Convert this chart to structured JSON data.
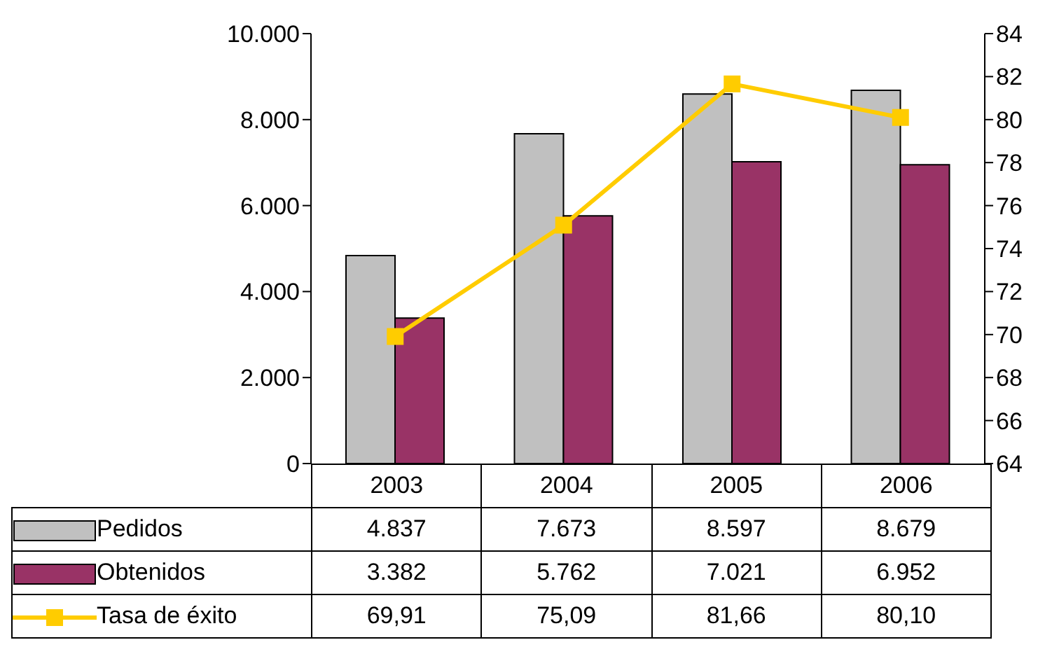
{
  "chart_data": {
    "type": "bar",
    "categories": [
      "2003",
      "2004",
      "2005",
      "2006"
    ],
    "series": [
      {
        "name": "Pedidos",
        "color": "#c0c0c0",
        "values": [
          4837,
          7673,
          8597,
          8679
        ],
        "value_labels": [
          "4.837",
          "7.673",
          "8.597",
          "8.679"
        ]
      },
      {
        "name": "Obtenidos",
        "color": "#993366",
        "values": [
          3382,
          5762,
          7021,
          6952
        ],
        "value_labels": [
          "3.382",
          "5.762",
          "7.021",
          "6.952"
        ]
      },
      {
        "name": "Tasa de éxito",
        "type": "line",
        "axis": "y2",
        "color": "#ffcc00",
        "marker": "square",
        "values": [
          69.91,
          75.09,
          81.66,
          80.1
        ],
        "value_labels": [
          "69,91",
          "75,09",
          "81,66",
          "80,10"
        ]
      }
    ],
    "ylim": [
      0,
      10000
    ],
    "yticks": [
      0,
      {
        "value": 2000,
        "label": "2.000"
      },
      {
        "value": 4000,
        "label": "4.000"
      },
      {
        "value": 6000,
        "label": "6.000"
      },
      {
        "value": 8000,
        "label": "8.000"
      },
      {
        "value": 10000,
        "label": "10.000"
      }
    ],
    "y2lim": [
      64,
      84
    ],
    "y2ticks": [
      64,
      66,
      68,
      70,
      72,
      74,
      76,
      78,
      80,
      82,
      84
    ],
    "grid": false,
    "legend": "bottom"
  }
}
